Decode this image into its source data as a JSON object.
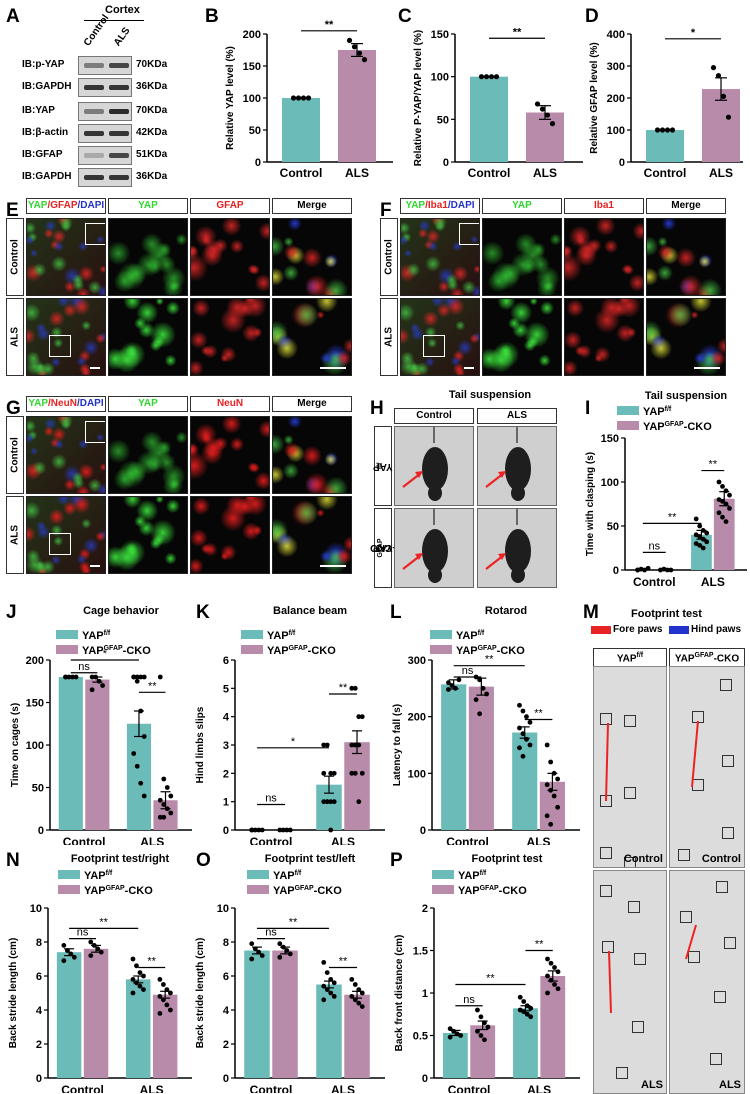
{
  "letters": [
    "A",
    "B",
    "C",
    "D",
    "E",
    "F",
    "G",
    "H",
    "I",
    "J",
    "K",
    "L",
    "M",
    "N",
    "O",
    "P"
  ],
  "colors": {
    "control": "#6bbcb8",
    "als": "#b98bab",
    "green": "#2fd82f",
    "red": "#e62222",
    "blue": "#2233cc"
  },
  "panelA": {
    "tissue": "Cortex",
    "lanes": [
      "Control",
      "ALS"
    ],
    "rows": [
      {
        "label": "IB:p-YAP",
        "kda": "70KDa"
      },
      {
        "label": "IB:GAPDH",
        "kda": "36KDa"
      },
      {
        "label": "IB:YAP",
        "kda": "70KDa"
      },
      {
        "label": "IB:β-actin",
        "kda": "42KDa"
      },
      {
        "label": "IB:GFAP",
        "kda": "51KDa"
      },
      {
        "label": "IB:GAPDH",
        "kda": "36KDa"
      }
    ]
  },
  "panelE": {
    "merged": {
      "p1": "YAP",
      "p2": "/GFAP",
      "p3": "/DAPI"
    },
    "cols": [
      "YAP",
      "GFAP",
      "Merge"
    ],
    "rows": [
      "Control",
      "ALS"
    ]
  },
  "panelF": {
    "merged": {
      "p1": "YAP",
      "p2": "/Iba1",
      "p3": "/DAPI"
    },
    "cols": [
      "YAP",
      "Iba1",
      "Merge"
    ],
    "rows": [
      "Control",
      "ALS"
    ]
  },
  "panelG": {
    "merged": {
      "p1": "YAP",
      "p2": "/NeuN",
      "p3": "/DAPI"
    },
    "cols": [
      "YAP",
      "NeuN",
      "Merge"
    ],
    "rows": [
      "Control",
      "ALS"
    ]
  },
  "panelH": {
    "title": "Tail suspension",
    "cols": [
      "Control",
      "ALS"
    ],
    "rows": [
      {
        "base": "YAP",
        "sup": "f/f",
        "suffix": ""
      },
      {
        "base": "YAP",
        "sup": "GFAP",
        "suffix": "-CKO"
      }
    ]
  },
  "panelM": {
    "title": "Footprint test",
    "fore": "Fore paws",
    "hind": "Hind paws",
    "cols": [
      {
        "base": "YAP",
        "sup": "f/f",
        "suffix": ""
      },
      {
        "base": "YAP",
        "sup": "GFAP",
        "suffix": "-CKO"
      }
    ],
    "labels": [
      "Control",
      "Control",
      "ALS",
      "ALS"
    ]
  },
  "chart_data": [
    {
      "id": "B",
      "type": "bar",
      "categories": [
        "Control",
        "ALS"
      ],
      "values": [
        100,
        175
      ],
      "errors": [
        0,
        10
      ],
      "points": [
        [
          100,
          100,
          100,
          100
        ],
        [
          190,
          180,
          170,
          160
        ]
      ],
      "ylabel": "Relative YAP level (%)",
      "ylim": [
        0,
        200
      ],
      "yticks": [
        0,
        50,
        100,
        150,
        200
      ],
      "sig": [
        {
          "label": "**",
          "from": 0,
          "to": 1,
          "y": 205
        }
      ]
    },
    {
      "id": "C",
      "type": "bar",
      "categories": [
        "Control",
        "ALS"
      ],
      "values": [
        100,
        58
      ],
      "errors": [
        0,
        8
      ],
      "points": [
        [
          100,
          100,
          100,
          100
        ],
        [
          68,
          62,
          55,
          45
        ]
      ],
      "ylabel": "Relative P-YAP/YAP level (%)",
      "ylim": [
        0,
        150
      ],
      "yticks": [
        0,
        50,
        100,
        150
      ],
      "sig": [
        {
          "label": "**",
          "from": 0,
          "to": 1,
          "y": 145
        }
      ]
    },
    {
      "id": "D",
      "type": "bar",
      "categories": [
        "Control",
        "ALS"
      ],
      "values": [
        100,
        228
      ],
      "errors": [
        0,
        35
      ],
      "points": [
        [
          100,
          100,
          100,
          100
        ],
        [
          295,
          270,
          205,
          140
        ]
      ],
      "ylabel": "Relative GFAP level (%)",
      "ylim": [
        0,
        400
      ],
      "yticks": [
        0,
        100,
        200,
        300,
        400
      ],
      "sig": [
        {
          "label": "*",
          "from": 0,
          "to": 1,
          "y": 385
        }
      ]
    },
    {
      "id": "I",
      "type": "grouped-bar",
      "title": "Tail suspension",
      "legend": [
        {
          "base": "YAP",
          "sup": "f/f",
          "suffix": ""
        },
        {
          "base": "YAP",
          "sup": "GFAP",
          "suffix": "-CKO"
        }
      ],
      "categories": [
        "Control",
        "ALS"
      ],
      "series": [
        {
          "values": [
            0,
            40
          ],
          "errors": [
            0,
            5
          ]
        },
        {
          "values": [
            0,
            81
          ],
          "errors": [
            0,
            8
          ]
        }
      ],
      "points": [
        [
          [
            0,
            1,
            0,
            2,
            0
          ],
          [
            58,
            50,
            45,
            42,
            40,
            38,
            35,
            32,
            30,
            28,
            25
          ]
        ],
        [
          [
            0,
            1,
            0,
            0
          ],
          [
            100,
            95,
            90,
            85,
            80,
            78,
            75,
            70,
            65,
            60,
            55
          ]
        ]
      ],
      "ylabel": "Time with clasping (s)",
      "ylim": [
        0,
        150
      ],
      "yticks": [
        0,
        50,
        100,
        150
      ],
      "sig": [
        {
          "label": "ns",
          "from": 0,
          "to": 1,
          "y": 20
        },
        {
          "label": "**",
          "from": 0,
          "to": 2,
          "y": 53
        },
        {
          "label": "**",
          "from": 2,
          "to": 3,
          "y": 113
        }
      ]
    },
    {
      "id": "J",
      "type": "grouped-bar",
      "title": "Cage behavior",
      "legend": [
        {
          "base": "YAP",
          "sup": "f/f",
          "suffix": ""
        },
        {
          "base": "YAP",
          "sup": "GFAP",
          "suffix": "-CKO"
        }
      ],
      "categories": [
        "Control",
        "ALS"
      ],
      "series": [
        {
          "values": [
            180,
            0
          ],
          "errors": [
            0,
            0
          ]
        },
        {
          "values": [
            177,
            0
          ],
          "errors": [
            3,
            0
          ]
        }
      ],
      "alsSeries": [
        125,
        35
      ],
      "alsErrors": [
        15,
        10
      ],
      "points": [
        [
          [
            180,
            180,
            180,
            180,
            180
          ],
          [
            180,
            180,
            180,
            180,
            180,
            175,
            140,
            110,
            90,
            75,
            55,
            40
          ]
        ],
        [
          [
            180,
            180,
            175,
            170,
            165
          ],
          [
            180,
            60,
            50,
            40,
            35,
            30,
            25,
            20,
            15,
            15
          ]
        ]
      ],
      "ylabel": "Time on cages (s)",
      "ylim": [
        0,
        200
      ],
      "yticks": [
        0,
        50,
        100,
        150,
        200
      ],
      "sig": [
        {
          "label": "ns",
          "from": 0,
          "to": 1,
          "y": 185
        },
        {
          "label": "*",
          "from": 0,
          "to": 2,
          "y": 200
        },
        {
          "label": "**",
          "from": 2,
          "to": 3,
          "y": 162
        }
      ]
    },
    {
      "id": "K",
      "type": "grouped-bar",
      "title": "Balance beam",
      "legend": [
        {
          "base": "YAP",
          "sup": "f/f",
          "suffix": ""
        },
        {
          "base": "YAP",
          "sup": "GFAP",
          "suffix": "-CKO"
        }
      ],
      "categories": [
        "Control",
        "ALS"
      ],
      "series": [
        {
          "values": [
            0,
            1.6
          ],
          "errors": [
            0,
            0.3
          ]
        },
        {
          "values": [
            0,
            3.1
          ],
          "errors": [
            0,
            0.4
          ]
        }
      ],
      "points": [
        [
          [
            0,
            0,
            0,
            0,
            0
          ],
          [
            3,
            3,
            2,
            2,
            2,
            1,
            1,
            1,
            1,
            1,
            0
          ]
        ],
        [
          [
            0,
            0,
            0,
            0
          ],
          [
            5,
            5,
            4,
            4,
            3,
            3,
            3,
            2,
            2,
            2,
            1
          ]
        ]
      ],
      "ylabel": "Hind limbs slips",
      "ylim": [
        0,
        6
      ],
      "yticks": [
        0,
        1,
        2,
        3,
        4,
        5,
        6
      ],
      "sig": [
        {
          "label": "ns",
          "from": 0,
          "to": 1,
          "y": 0.9
        },
        {
          "label": "*",
          "from": 0,
          "to": 2,
          "y": 2.9
        },
        {
          "label": "**",
          "from": 2,
          "to": 3,
          "y": 4.8
        }
      ]
    },
    {
      "id": "L",
      "type": "grouped-bar",
      "title": "Rotarod",
      "legend": [
        {
          "base": "YAP",
          "sup": "f/f",
          "suffix": ""
        },
        {
          "base": "YAP",
          "sup": "GFAP",
          "suffix": "-CKO"
        }
      ],
      "categories": [
        "Control",
        "ALS"
      ],
      "series": [
        {
          "values": [
            257,
            172
          ],
          "errors": [
            8,
            10
          ]
        },
        {
          "values": [
            253,
            85
          ],
          "errors": [
            15,
            15
          ]
        }
      ],
      "points": [
        [
          [
            260,
            255,
            250,
            265,
            248
          ],
          [
            220,
            210,
            200,
            190,
            180,
            170,
            160,
            150,
            145,
            130
          ]
        ],
        [
          [
            270,
            265,
            250,
            240,
            230,
            205
          ],
          [
            150,
            120,
            100,
            90,
            80,
            70,
            60,
            40,
            25,
            10
          ]
        ]
      ],
      "ylabel": "Latency to fall (s)",
      "ylim": [
        0,
        300
      ],
      "yticks": [
        0,
        100,
        200,
        300
      ],
      "sig": [
        {
          "label": "ns",
          "from": 0,
          "to": 1,
          "y": 270
        },
        {
          "label": "**",
          "from": 0,
          "to": 2,
          "y": 290
        },
        {
          "label": "**",
          "from": 2,
          "to": 3,
          "y": 195
        }
      ]
    },
    {
      "id": "N",
      "type": "grouped-bar",
      "title": "Footprint test/right",
      "legend": [
        {
          "base": "YAP",
          "sup": "f/f",
          "suffix": ""
        },
        {
          "base": "YAP",
          "sup": "GFAP",
          "suffix": "-CKO"
        }
      ],
      "categories": [
        "Control",
        "ALS"
      ],
      "series": [
        {
          "values": [
            7.4,
            5.8
          ],
          "errors": [
            0.2,
            0.2
          ]
        },
        {
          "values": [
            7.6,
            4.9
          ],
          "errors": [
            0.2,
            0.2
          ]
        }
      ],
      "points": [
        [
          [
            7.8,
            7.5,
            7.3,
            7.1,
            6.9
          ],
          [
            7.0,
            6.6,
            6.2,
            6.0,
            5.8,
            5.6,
            5.4,
            5.2,
            5.0
          ]
        ],
        [
          [
            8.0,
            7.8,
            7.6,
            7.4,
            7.2
          ],
          [
            5.8,
            5.5,
            5.2,
            5.0,
            4.8,
            4.6,
            4.3,
            4.0,
            3.8
          ]
        ]
      ],
      "ylabel": "Back stride length (cm)",
      "ylim": [
        0,
        10
      ],
      "yticks": [
        0,
        2,
        4,
        6,
        8,
        10
      ],
      "sig": [
        {
          "label": "ns",
          "from": 0,
          "to": 1,
          "y": 8.2
        },
        {
          "label": "**",
          "from": 0,
          "to": 2,
          "y": 8.8
        },
        {
          "label": "**",
          "from": 2,
          "to": 3,
          "y": 6.5
        }
      ]
    },
    {
      "id": "O",
      "type": "grouped-bar",
      "title": "Footprint test/left",
      "legend": [
        {
          "base": "YAP",
          "sup": "f/f",
          "suffix": ""
        },
        {
          "base": "YAP",
          "sup": "GFAP",
          "suffix": "-CKO"
        }
      ],
      "categories": [
        "Control",
        "ALS"
      ],
      "series": [
        {
          "values": [
            7.5,
            5.5
          ],
          "errors": [
            0.2,
            0.2
          ]
        },
        {
          "values": [
            7.5,
            4.9
          ],
          "errors": [
            0.2,
            0.2
          ]
        }
      ],
      "points": [
        [
          [
            7.9,
            7.6,
            7.4,
            7.2,
            7.0
          ],
          [
            6.8,
            6.2,
            5.8,
            5.6,
            5.4,
            5.2,
            5.0,
            4.8,
            4.6
          ]
        ],
        [
          [
            7.9,
            7.7,
            7.5,
            7.3,
            7.1
          ],
          [
            5.8,
            5.5,
            5.2,
            5.0,
            4.8,
            4.6,
            4.4,
            4.2
          ]
        ]
      ],
      "ylabel": "Back stride length (cm)",
      "ylim": [
        0,
        10
      ],
      "yticks": [
        0,
        2,
        4,
        6,
        8,
        10
      ],
      "sig": [
        {
          "label": "ns",
          "from": 0,
          "to": 1,
          "y": 8.2
        },
        {
          "label": "**",
          "from": 0,
          "to": 2,
          "y": 8.8
        },
        {
          "label": "**",
          "from": 2,
          "to": 3,
          "y": 6.5
        }
      ]
    },
    {
      "id": "P",
      "type": "grouped-bar",
      "title": "Footprint test",
      "legend": [
        {
          "base": "YAP",
          "sup": "f/f",
          "suffix": ""
        },
        {
          "base": "YAP",
          "sup": "GFAP",
          "suffix": "-CKO"
        }
      ],
      "categories": [
        "Control",
        "ALS"
      ],
      "series": [
        {
          "values": [
            0.53,
            0.82
          ],
          "errors": [
            0.03,
            0.03
          ]
        },
        {
          "values": [
            0.62,
            1.2
          ],
          "errors": [
            0.05,
            0.06
          ]
        }
      ],
      "points": [
        [
          [
            0.58,
            0.55,
            0.52,
            0.5,
            0.48
          ],
          [
            0.95,
            0.9,
            0.85,
            0.82,
            0.8,
            0.78,
            0.75,
            0.72
          ]
        ],
        [
          [
            0.8,
            0.72,
            0.65,
            0.6,
            0.55,
            0.5,
            0.45
          ],
          [
            1.4,
            1.35,
            1.3,
            1.25,
            1.2,
            1.15,
            1.1,
            1.05,
            1.0
          ]
        ]
      ],
      "ylabel": "Back front distance (cm)",
      "ylim": [
        0,
        2.0
      ],
      "yticks": [
        0.0,
        0.5,
        1.0,
        1.5,
        2.0
      ],
      "sig": [
        {
          "label": "ns",
          "from": 0,
          "to": 1,
          "y": 0.85
        },
        {
          "label": "**",
          "from": 0,
          "to": 2,
          "y": 1.1
        },
        {
          "label": "**",
          "from": 2,
          "to": 3,
          "y": 1.5
        }
      ]
    }
  ]
}
